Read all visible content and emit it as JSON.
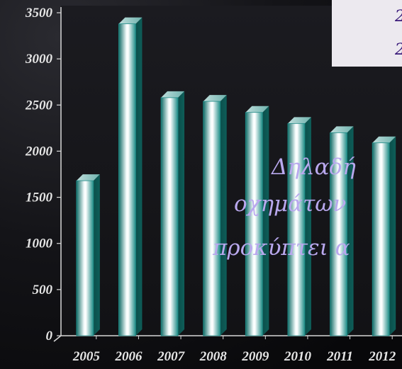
{
  "chart_data": {
    "type": "bar",
    "title": "",
    "xlabel": "",
    "ylabel": "",
    "categories": [
      "2005",
      "2006",
      "2007",
      "2008",
      "2009",
      "2010",
      "2011",
      "2012"
    ],
    "values": [
      1680,
      3380,
      2580,
      2540,
      2420,
      2300,
      2200,
      2090
    ],
    "ylim": [
      0,
      3500
    ],
    "yticks": [
      0,
      500,
      1000,
      1500,
      2000,
      2500,
      3000,
      3500
    ],
    "ytick_labels": [
      "0",
      "500",
      "1000",
      "1500",
      "2000",
      "2500",
      "3000",
      "3500"
    ],
    "grid": false,
    "legend": "none",
    "bar_color": "#1f8a86"
  },
  "overlay": {
    "lines": [
      "Δηλαδή",
      "οχημάτων",
      "προκύπτει α"
    ]
  },
  "legend_box": {
    "lines": [
      "2",
      "2"
    ]
  }
}
